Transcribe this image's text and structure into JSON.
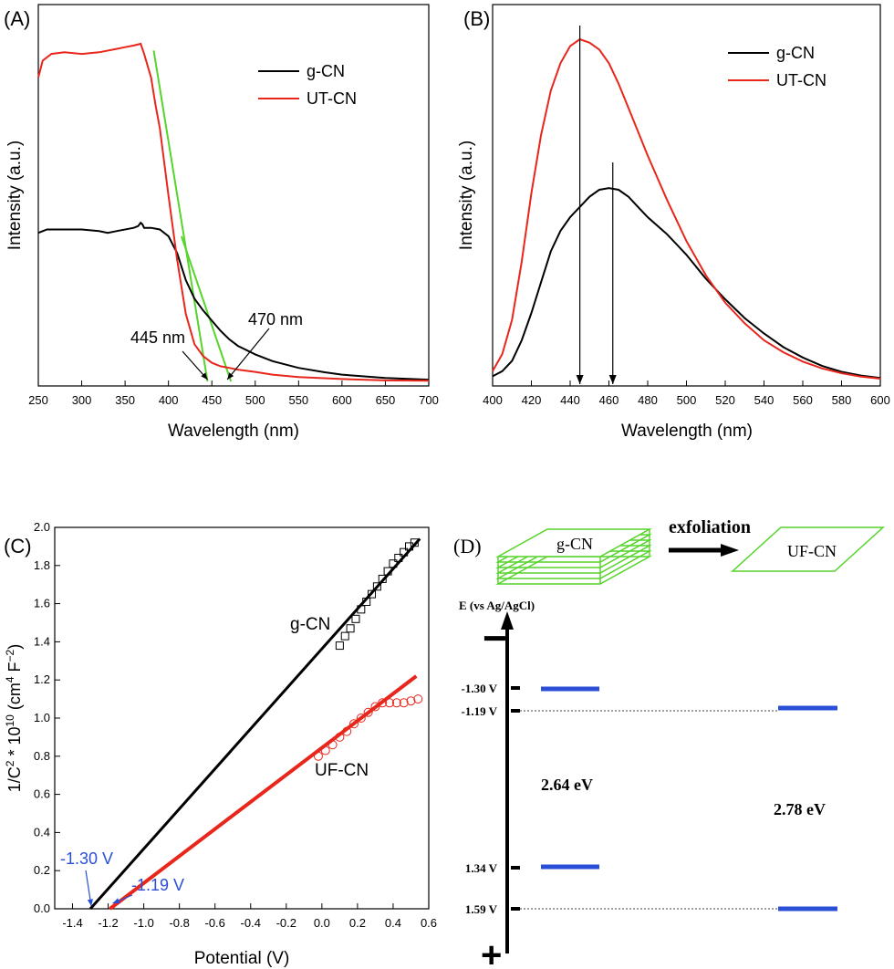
{
  "panels": {
    "A": {
      "label": "(A)"
    },
    "B": {
      "label": "(B)"
    },
    "C": {
      "label": "(C)"
    },
    "D": {
      "label": "(D)"
    }
  },
  "chart_data": [
    {
      "panel": "A",
      "type": "line",
      "xlabel": "Wavelength (nm)",
      "ylabel": "Intensity (a.u.)",
      "xlim": [
        250,
        700
      ],
      "xticks": [
        "250",
        "300",
        "350",
        "400",
        "450",
        "500",
        "550",
        "600",
        "650",
        "700"
      ],
      "legend": {
        "placement": "top-right"
      },
      "series": [
        {
          "name": "g-CN",
          "color": "#000000",
          "x": [
            250,
            260,
            280,
            300,
            320,
            330,
            340,
            360,
            365,
            368,
            370,
            372,
            380,
            390,
            400,
            410,
            420,
            430,
            440,
            450,
            460,
            470,
            480,
            500,
            520,
            550,
            580,
            600,
            650,
            700
          ],
          "y": [
            0.44,
            0.45,
            0.45,
            0.45,
            0.445,
            0.44,
            0.445,
            0.455,
            0.46,
            0.47,
            0.465,
            0.455,
            0.455,
            0.45,
            0.43,
            0.38,
            0.3,
            0.245,
            0.21,
            0.18,
            0.15,
            0.125,
            0.105,
            0.08,
            0.06,
            0.04,
            0.027,
            0.02,
            0.01,
            0.005
          ]
        },
        {
          "name": "UT-CN",
          "color": "#e8261b",
          "x": [
            250,
            255,
            265,
            280,
            300,
            320,
            340,
            350,
            360,
            368,
            372,
            380,
            385,
            390,
            400,
            410,
            420,
            430,
            440,
            450,
            460,
            470,
            480,
            500,
            520,
            550,
            600,
            650,
            700
          ],
          "y": [
            0.9,
            0.95,
            0.97,
            0.975,
            0.97,
            0.975,
            0.985,
            0.99,
            0.995,
            1.0,
            0.97,
            0.9,
            0.82,
            0.75,
            0.55,
            0.36,
            0.2,
            0.11,
            0.075,
            0.055,
            0.045,
            0.04,
            0.035,
            0.028,
            0.02,
            0.013,
            0.007,
            0.003,
            0.002
          ]
        }
      ],
      "tangents": [
        {
          "color": "#55d42a",
          "x": [
            383,
            445
          ],
          "y": [
            0.98,
            0.0
          ]
        },
        {
          "color": "#55d42a",
          "x": [
            415,
            472
          ],
          "y": [
            0.43,
            0.0
          ]
        }
      ],
      "annotations": [
        {
          "text": "445 nm",
          "x": 445,
          "y": 0.0
        },
        {
          "text": "470 nm",
          "x": 472,
          "y": 0.0
        }
      ]
    },
    {
      "panel": "B",
      "type": "line",
      "xlabel": "Wavelength (nm)",
      "ylabel": "Intensity (a.u.)",
      "xlim": [
        400,
        600
      ],
      "xticks": [
        "400",
        "420",
        "440",
        "460",
        "480",
        "500",
        "520",
        "540",
        "560",
        "580",
        "600"
      ],
      "legend": {
        "placement": "top-right"
      },
      "series": [
        {
          "name": "g-CN",
          "color": "#000000",
          "x": [
            400,
            405,
            410,
            415,
            420,
            425,
            430,
            435,
            440,
            445,
            450,
            455,
            460,
            465,
            470,
            475,
            480,
            485,
            490,
            495,
            500,
            510,
            520,
            530,
            540,
            550,
            560,
            570,
            580,
            590,
            600
          ],
          "y": [
            0.015,
            0.03,
            0.06,
            0.12,
            0.2,
            0.29,
            0.38,
            0.44,
            0.48,
            0.51,
            0.54,
            0.56,
            0.565,
            0.56,
            0.54,
            0.51,
            0.48,
            0.455,
            0.43,
            0.4,
            0.37,
            0.3,
            0.24,
            0.185,
            0.14,
            0.1,
            0.07,
            0.045,
            0.028,
            0.017,
            0.01
          ]
        },
        {
          "name": "UT-CN",
          "color": "#e8261b",
          "x": [
            400,
            405,
            410,
            415,
            420,
            425,
            430,
            435,
            440,
            445,
            450,
            455,
            460,
            465,
            470,
            475,
            480,
            490,
            500,
            510,
            520,
            530,
            540,
            550,
            560,
            570,
            580,
            590,
            600
          ],
          "y": [
            0.03,
            0.08,
            0.18,
            0.35,
            0.55,
            0.72,
            0.85,
            0.93,
            0.98,
            1.0,
            0.99,
            0.97,
            0.93,
            0.87,
            0.8,
            0.73,
            0.66,
            0.53,
            0.41,
            0.31,
            0.23,
            0.17,
            0.12,
            0.085,
            0.058,
            0.038,
            0.024,
            0.014,
            0.008
          ]
        }
      ],
      "markers": [
        {
          "x": 445,
          "y_top": 1.04
        },
        {
          "x": 462,
          "y_top": 0.64
        }
      ]
    },
    {
      "panel": "C",
      "type": "scatter",
      "xlabel": "Potential (V)",
      "ylabel": "1/C² * 10¹⁰ (cm⁴ F⁻²)",
      "ylabel_parts": {
        "pre": "1/C",
        "sup1": "2",
        "mid": " * 10",
        "sup2": "10",
        "paren": " (cm",
        "sup3": "4",
        "unit2": " F",
        "sup4": "−2",
        "close": ")"
      },
      "xlim": [
        -1.5,
        0.6
      ],
      "ylim": [
        0,
        2.0
      ],
      "xticks": [
        "-1.4",
        "-1.2",
        "-1.0",
        "-0.8",
        "-0.6",
        "-0.4",
        "-0.2",
        "0.0",
        "0.2",
        "0.4",
        "0.6"
      ],
      "yticks": [
        "0.0",
        "0.2",
        "0.4",
        "0.6",
        "0.8",
        "1.0",
        "1.2",
        "1.4",
        "1.6",
        "1.8",
        "2.0"
      ],
      "series": [
        {
          "name": "g-CN",
          "marker": "square",
          "color": "#000000",
          "points": [
            [
              0.1,
              1.38
            ],
            [
              0.13,
              1.43
            ],
            [
              0.16,
              1.47
            ],
            [
              0.19,
              1.52
            ],
            [
              0.22,
              1.57
            ],
            [
              0.25,
              1.61
            ],
            [
              0.28,
              1.65
            ],
            [
              0.31,
              1.69
            ],
            [
              0.34,
              1.73
            ],
            [
              0.37,
              1.77
            ],
            [
              0.4,
              1.81
            ],
            [
              0.43,
              1.84
            ],
            [
              0.46,
              1.87
            ],
            [
              0.49,
              1.9
            ],
            [
              0.52,
              1.92
            ]
          ],
          "fit": {
            "color": "#000000",
            "x": [
              -1.3,
              0.55
            ],
            "y": [
              0.0,
              1.94
            ]
          }
        },
        {
          "name": "UF-CN",
          "marker": "circle",
          "color": "#e8261b",
          "points": [
            [
              -0.02,
              0.8
            ],
            [
              0.02,
              0.83
            ],
            [
              0.06,
              0.86
            ],
            [
              0.1,
              0.9
            ],
            [
              0.14,
              0.93
            ],
            [
              0.18,
              0.97
            ],
            [
              0.22,
              1.0
            ],
            [
              0.26,
              1.03
            ],
            [
              0.3,
              1.06
            ],
            [
              0.34,
              1.08
            ],
            [
              0.38,
              1.08
            ],
            [
              0.42,
              1.08
            ],
            [
              0.46,
              1.08
            ],
            [
              0.5,
              1.09
            ],
            [
              0.54,
              1.1
            ]
          ],
          "fit": {
            "color": "#e8261b",
            "x": [
              -1.19,
              0.53
            ],
            "y": [
              0.0,
              1.22
            ]
          }
        }
      ],
      "annotations": [
        {
          "text": "-1.30 V",
          "x": -1.3,
          "color": "#2a4fd6"
        },
        {
          "text": "-1.19 V",
          "x": -1.19,
          "color": "#2a4fd6"
        }
      ]
    }
  ],
  "diagram": {
    "stack_label": "g-CN",
    "sheet_label": "UF-CN",
    "arrow_label": "exfoliation",
    "axis_label": "E (vs Ag/AgCl)",
    "minus_sign": "−",
    "plus_sign": "+",
    "levels": [
      {
        "text": "-1.30 V",
        "value": -1.3
      },
      {
        "text": "-1.19 V",
        "value": -1.19
      },
      {
        "text": "1.34 V",
        "value": 1.34
      },
      {
        "text": "1.59 V",
        "value": 1.59
      }
    ],
    "gaps": [
      {
        "text": "2.64 eV"
      },
      {
        "text": "2.78 eV"
      }
    ],
    "colors": {
      "sheet": "#55d42a",
      "band": "#2a4fd6"
    }
  }
}
